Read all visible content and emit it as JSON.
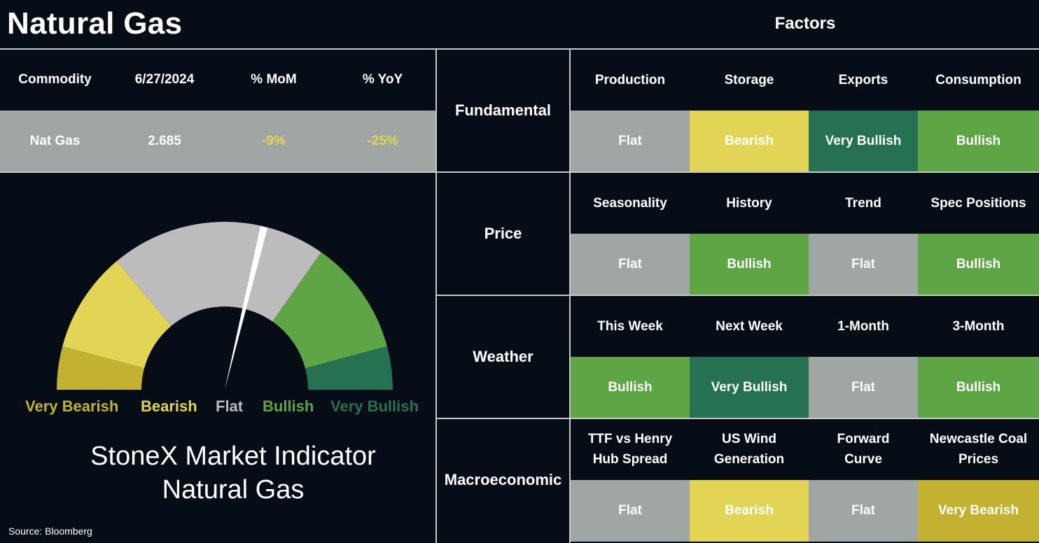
{
  "header": {
    "title": "Natural Gas",
    "factors_title": "Factors"
  },
  "commodity_table": {
    "headers": [
      "Commodity",
      "6/27/2024",
      "% MoM",
      "% YoY"
    ],
    "row": [
      "Nat Gas",
      "2.685",
      "-9%",
      "-25%"
    ]
  },
  "gauge": {
    "segments": [
      {
        "label": "Very Bearish",
        "color": "#c3b232"
      },
      {
        "label": "Bearish",
        "color": "#e2d455"
      },
      {
        "label": "Flat",
        "color": "#bcbcbc"
      },
      {
        "label": "Bullish",
        "color": "#5ea645"
      },
      {
        "label": "Very Bullish",
        "color": "#267152"
      }
    ],
    "indicator": "Flat"
  },
  "indicator_title": {
    "line1": "StoneX Market Indicator",
    "line2": "Natural Gas"
  },
  "source": "Source: Bloomberg",
  "categories": [
    {
      "name": "Fundamental",
      "factors": [
        {
          "name": "Production",
          "value": "Flat"
        },
        {
          "name": "Storage",
          "value": "Bearish"
        },
        {
          "name": "Exports",
          "value": "Very Bullish"
        },
        {
          "name": "Consumption",
          "value": "Bullish"
        }
      ]
    },
    {
      "name": "Price",
      "factors": [
        {
          "name": "Seasonality",
          "value": "Flat"
        },
        {
          "name": "History",
          "value": "Bullish"
        },
        {
          "name": "Trend",
          "value": "Flat"
        },
        {
          "name": "Spec Positions",
          "value": "Bullish"
        }
      ]
    },
    {
      "name": "Weather",
      "factors": [
        {
          "name": "This Week",
          "value": "Bullish"
        },
        {
          "name": "Next Week",
          "value": "Very Bullish"
        },
        {
          "name": "1-Month",
          "value": "Flat"
        },
        {
          "name": "3-Month",
          "value": "Bullish"
        }
      ]
    },
    {
      "name": "Macroeconomic",
      "factors": [
        {
          "name": "TTF vs Henry\nHub Spread",
          "value": "Flat"
        },
        {
          "name": "US Wind\nGeneration",
          "value": "Bearish"
        },
        {
          "name": "Forward\nCurve",
          "value": "Flat"
        },
        {
          "name": "Newcastle Coal\nPrices",
          "value": "Very Bearish"
        }
      ]
    }
  ],
  "colors": {
    "background": "#070d17",
    "Flat": "#a0a6a3",
    "Bearish": "#e2d455",
    "Very Bearish": "#c3b232",
    "Bullish": "#5ea645",
    "Very Bullish": "#267152",
    "text_on_flat": "#ffffff",
    "text_on_bearish": "#ffffff",
    "negative_pct": "#e2d455"
  }
}
